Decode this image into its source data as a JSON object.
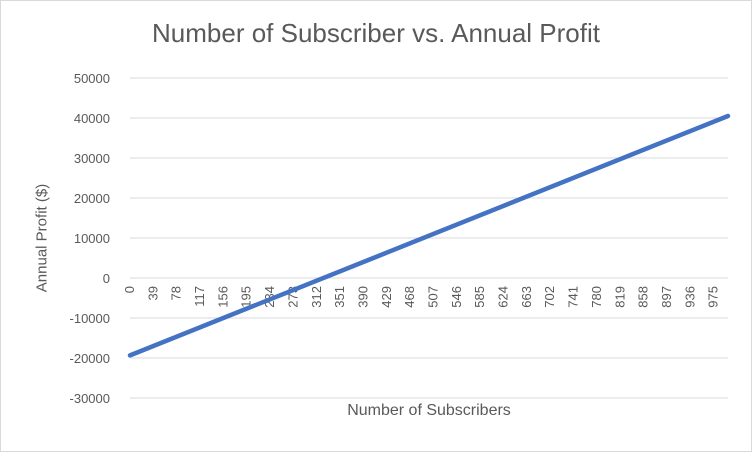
{
  "chart_data": {
    "type": "line",
    "title": "Number of Subscriber vs. Annual Profit",
    "xlabel": "Number of Subscribers",
    "ylabel": "Annual Profit ($)",
    "categories": [
      "0",
      "39",
      "78",
      "117",
      "156",
      "195",
      "234",
      "273",
      "312",
      "351",
      "390",
      "429",
      "468",
      "507",
      "546",
      "585",
      "624",
      "663",
      "702",
      "741",
      "780",
      "819",
      "858",
      "897",
      "936",
      "975"
    ],
    "x": [
      0,
      999
    ],
    "series": [
      {
        "values": [
          -19350,
          40500
        ]
      }
    ],
    "ylim": [
      -30000,
      50000
    ],
    "yticks": [
      50000,
      40000,
      30000,
      20000,
      10000,
      0,
      -10000,
      -20000,
      -30000
    ],
    "grid": true,
    "legend": "none",
    "line_color": "#4472c4"
  }
}
